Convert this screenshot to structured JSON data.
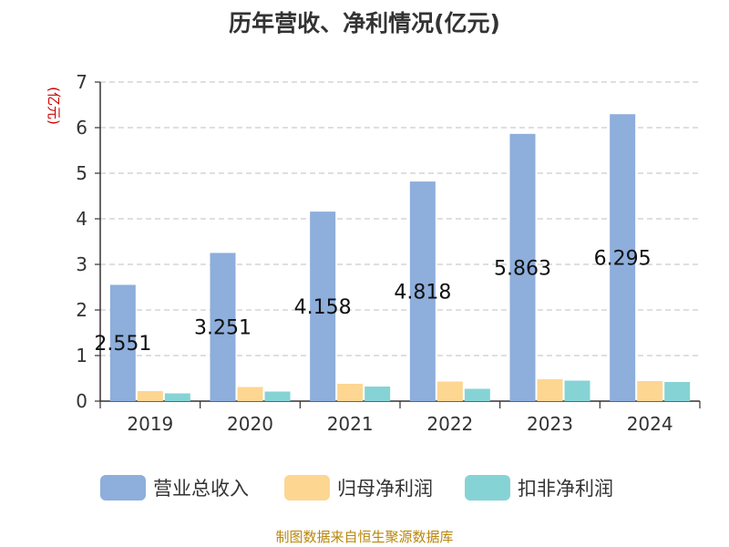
{
  "chart_data": {
    "type": "bar",
    "title": "历年营收、净利情况(亿元)",
    "ylabel": "(亿元)",
    "xlabel": "",
    "ylim": [
      0,
      7
    ],
    "yticks": [
      0,
      1,
      2,
      3,
      4,
      5,
      6,
      7
    ],
    "grid": true,
    "legend_position": "bottom",
    "categories": [
      "2019",
      "2020",
      "2021",
      "2022",
      "2023",
      "2024"
    ],
    "series": [
      {
        "name": "营业总收入",
        "color": "#8eaedb",
        "values": [
          2.551,
          3.251,
          4.158,
          4.818,
          5.863,
          6.295
        ],
        "data_labels": [
          "2.551",
          "3.251",
          "4.158",
          "4.818",
          "5.863",
          "6.295"
        ]
      },
      {
        "name": "归母净利润",
        "color": "#fdd692",
        "values": [
          0.22,
          0.31,
          0.38,
          0.43,
          0.48,
          0.44
        ]
      },
      {
        "name": "扣非净利润",
        "color": "#86d3d6",
        "values": [
          0.17,
          0.21,
          0.32,
          0.27,
          0.45,
          0.42
        ]
      }
    ]
  },
  "footer": {
    "source": "制图数据来自恒生聚源数据库"
  }
}
